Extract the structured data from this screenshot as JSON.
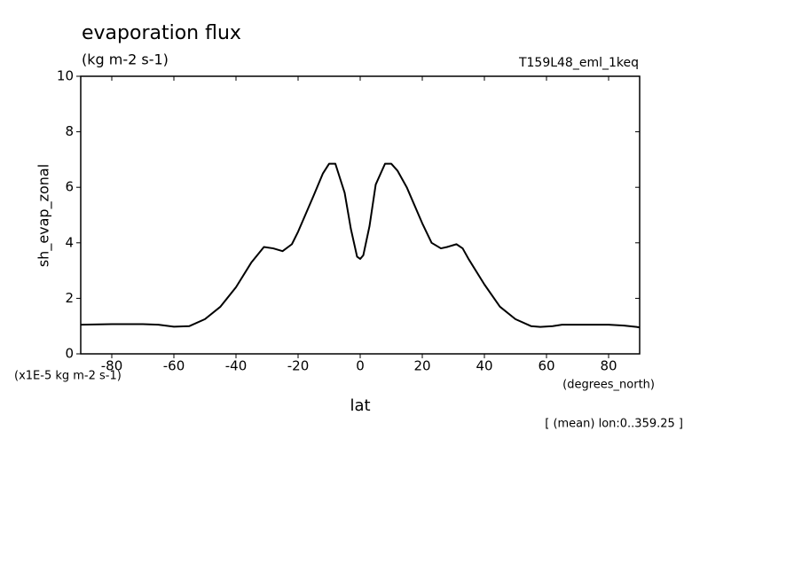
{
  "chart_data": {
    "type": "line",
    "title": "evaporation flux",
    "subtitle": "(kg m-2 s-1)",
    "run_label": "T159L48_eml_1keq",
    "y_label": "sh_evap_zonal",
    "y_unit": "(x1E-5 kg m-2 s-1)",
    "x_label": "lat",
    "x_unit": "(degrees_north)",
    "note": "[ (mean) lon:0..359.25 ]",
    "color": "#000000",
    "x": [
      -90,
      -80,
      -70,
      -65,
      -60,
      -55,
      -50,
      -45,
      -40,
      -35,
      -31,
      -28,
      -25,
      -22,
      -20,
      -15,
      -12,
      -10,
      -8,
      -5,
      -3,
      -1,
      0,
      1,
      3,
      5,
      8,
      10,
      12,
      15,
      20,
      23,
      26,
      28,
      31,
      33,
      35,
      40,
      45,
      50,
      55,
      58,
      62,
      65,
      70,
      80,
      85,
      89,
      90
    ],
    "values": [
      1.05,
      1.07,
      1.07,
      1.05,
      0.98,
      1.0,
      1.25,
      1.7,
      2.4,
      3.3,
      3.85,
      3.8,
      3.7,
      3.95,
      4.4,
      5.7,
      6.5,
      6.85,
      6.85,
      5.8,
      4.5,
      3.5,
      3.42,
      3.55,
      4.6,
      6.1,
      6.85,
      6.85,
      6.6,
      6.0,
      4.7,
      4.0,
      3.8,
      3.85,
      3.95,
      3.8,
      3.4,
      2.5,
      1.7,
      1.25,
      1.0,
      0.97,
      1.0,
      1.05,
      1.05,
      1.05,
      1.02,
      0.97,
      0.95
    ],
    "xlim": [
      -90,
      90
    ],
    "ylim": [
      0,
      10
    ],
    "xticks": [
      -80,
      -60,
      -40,
      -20,
      0,
      20,
      40,
      60,
      80
    ],
    "yticks": [
      0,
      2,
      4,
      6,
      8,
      10
    ]
  }
}
